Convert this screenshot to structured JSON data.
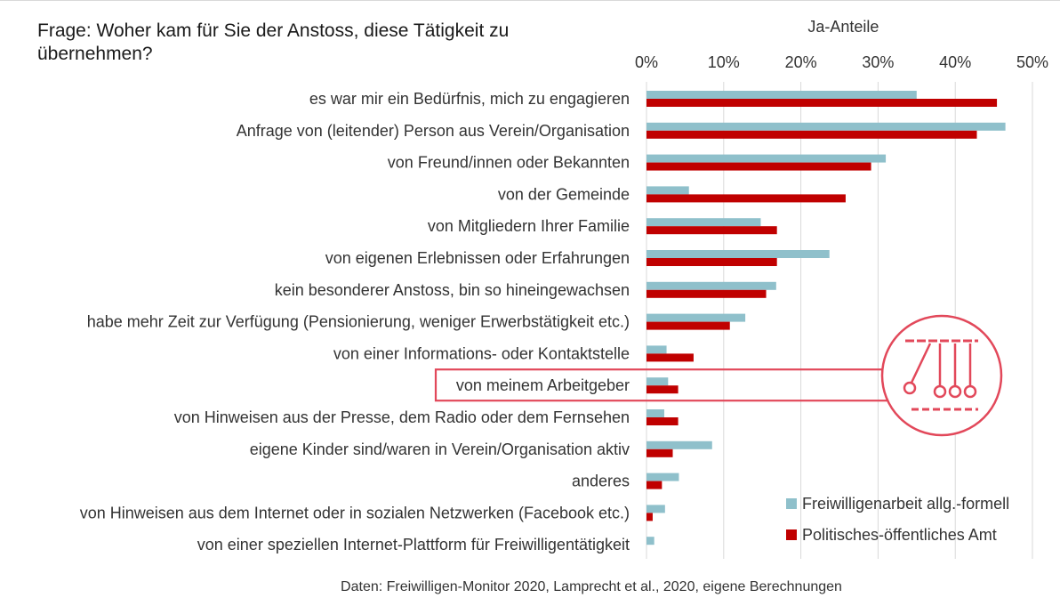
{
  "title": "Frage: Woher kam für Sie der Anstoss, diese Tätigkeit zu übernehmen?",
  "source": "Daten: Freiwilligen-Monitor 2020, Lamprecht et al., 2020, eigene Berechnungen",
  "colors": {
    "series1": "#8fc0cb",
    "series2": "#c00000",
    "highlight": "#e2485a",
    "grid": "#d9d9d9"
  },
  "highlighted_category": "von meinem Arbeitgeber",
  "icon": "newtons-cradle-icon",
  "chart_data": {
    "type": "bar",
    "orientation": "horizontal",
    "xlabel": "Ja-Anteile",
    "ylabel": "",
    "xlim": [
      0,
      50
    ],
    "ticks": [
      "0%",
      "10%",
      "20%",
      "30%",
      "40%",
      "50%"
    ],
    "tick_values": [
      0,
      10,
      20,
      30,
      40,
      50
    ],
    "grid": true,
    "legend_position": "bottom-right",
    "categories": [
      "es war mir ein Bedürfnis, mich zu engagieren",
      "Anfrage von (leitender) Person aus Verein/Organisation",
      "von Freund/innen oder Bekannten",
      "von der Gemeinde",
      "von Mitgliedern Ihrer Familie",
      "von eigenen Erlebnissen oder Erfahrungen",
      "kein besonderer Anstoss, bin so hineingewachsen",
      "habe mehr Zeit zur Verfügung (Pensionierung, weniger Erwerbstätigkeit etc.)",
      "von einer Informations- oder Kontaktstelle",
      "von meinem Arbeitgeber",
      "von Hinweisen aus der Presse, dem Radio oder dem Fernsehen",
      "eigene Kinder sind/waren in Verein/Organisation aktiv",
      "anderes",
      "von Hinweisen aus dem Internet oder in sozialen Netzwerken (Facebook etc.)",
      "von einer speziellen Internet-Plattform für Freiwilligentätigkeit"
    ],
    "series": [
      {
        "name": "Freiwilligenarbeit allg.-formell",
        "values": [
          35,
          46.5,
          31,
          5.5,
          14.8,
          23.7,
          16.8,
          12.8,
          2.6,
          2.8,
          2.3,
          8.5,
          4.2,
          2.4,
          1.0
        ]
      },
      {
        "name": "Politisches-öffentliches Amt",
        "values": [
          45.4,
          42.8,
          29.1,
          25.8,
          16.9,
          16.9,
          15.5,
          10.8,
          6.1,
          4.1,
          4.1,
          3.4,
          2.0,
          0.8,
          0
        ]
      }
    ]
  }
}
